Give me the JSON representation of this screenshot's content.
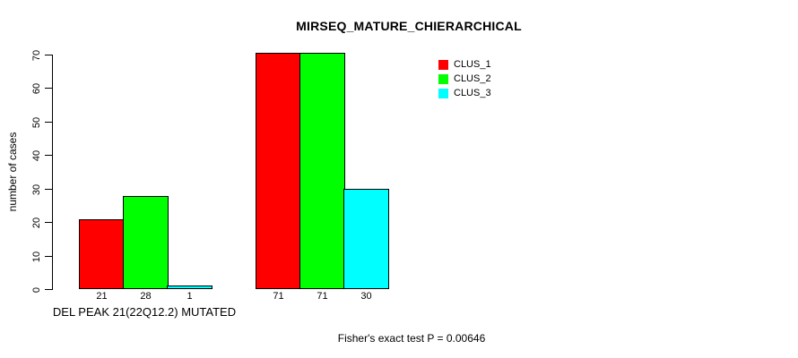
{
  "chart_data": {
    "type": "bar",
    "title": "MIRSEQ_MATURE_CHIERARCHICAL",
    "ylabel": "number of cases",
    "xlabel": "DEL PEAK 21(22Q12.2) MUTATED",
    "footer": "Fisher's exact test P = 0.00646",
    "categories": [
      "DEL PEAK 21(22Q12.2) MUTATED",
      ""
    ],
    "series": [
      {
        "name": "CLUS_1",
        "color": "#ff0000",
        "values": [
          21,
          71
        ]
      },
      {
        "name": "CLUS_2",
        "color": "#00ff00",
        "values": [
          28,
          71
        ]
      },
      {
        "name": "CLUS_3",
        "color": "#00ffff",
        "values": [
          1,
          30
        ]
      }
    ],
    "bar_value_labels": [
      [
        21,
        28,
        1
      ],
      [
        71,
        71,
        30
      ]
    ],
    "yticks": [
      0,
      10,
      20,
      30,
      40,
      50,
      60,
      70
    ],
    "ylim": [
      0,
      70
    ],
    "grid": false,
    "legend_position": "topright",
    "colors": {
      "background": "#ffffff",
      "axis": "#000000",
      "bar_border": "#000000",
      "text": "#000000"
    }
  }
}
